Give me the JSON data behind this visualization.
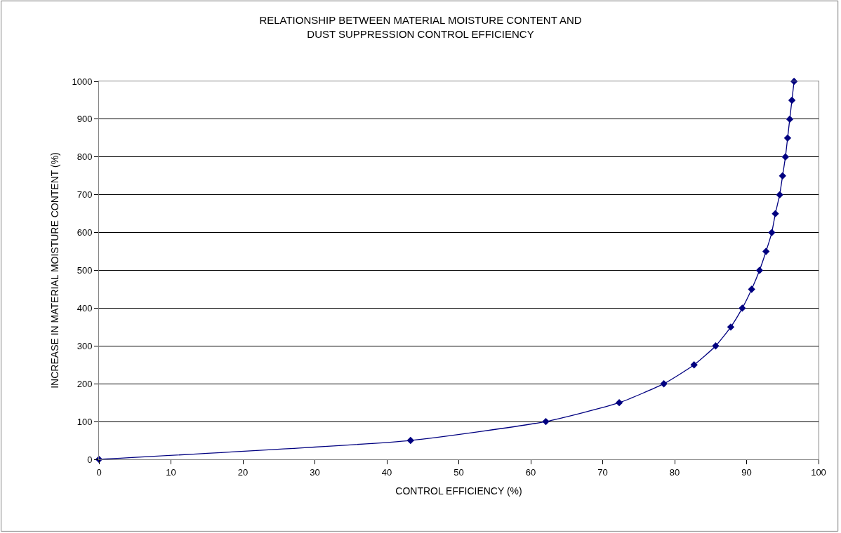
{
  "chart_data": {
    "type": "line",
    "title": "RELATIONSHIP BETWEEN MATERIAL MOISTURE CONTENT AND\nDUST SUPPRESSION CONTROL EFFICIENCY",
    "xlabel": "CONTROL EFFICIENCY (%)",
    "ylabel": "INCREASE IN MATERIAL MOISTURE CONTENT (%)",
    "x": [
      0,
      43.3,
      62.1,
      72.3,
      78.5,
      82.7,
      85.7,
      87.8,
      89.4,
      90.7,
      91.8,
      92.7,
      93.5,
      94.0,
      94.6,
      95.0,
      95.4,
      95.7,
      96.0,
      96.3,
      96.6
    ],
    "series": [
      {
        "color": "#000080",
        "values": [
          0,
          50,
          100,
          150,
          200,
          250,
          300,
          350,
          400,
          450,
          500,
          550,
          600,
          650,
          700,
          750,
          800,
          850,
          900,
          950,
          1000
        ]
      }
    ],
    "xlim": [
      0,
      100
    ],
    "xticks": [
      0,
      10,
      20,
      30,
      40,
      50,
      60,
      70,
      80,
      90,
      100
    ],
    "ylim": [
      0,
      1000
    ],
    "yticks": [
      0,
      100,
      200,
      300,
      400,
      500,
      600,
      700,
      800,
      900,
      1000
    ],
    "grid": "y",
    "marker": "diamond",
    "line_style": "solid"
  }
}
